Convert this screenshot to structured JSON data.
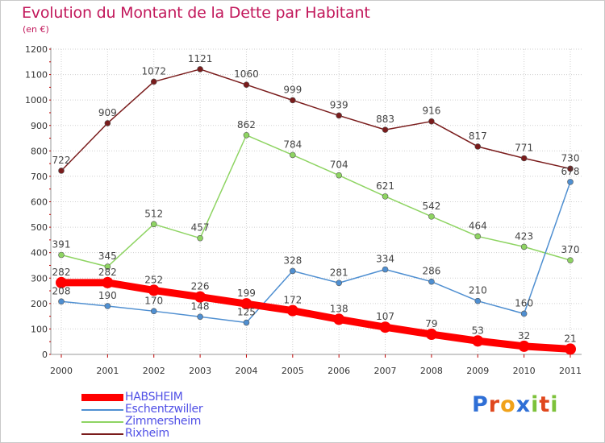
{
  "title": "Evolution du Montant de la Dette par Habitant",
  "subtitle": "(en €)",
  "chart_data": {
    "type": "line",
    "title": "Evolution du Montant de la Dette par Habitant",
    "subtitle": "(en €)",
    "x": [
      "2000",
      "2001",
      "2002",
      "2003",
      "2004",
      "2005",
      "2006",
      "2007",
      "2008",
      "2009",
      "2010",
      "2011"
    ],
    "yticks": [
      0,
      100,
      200,
      300,
      400,
      500,
      600,
      700,
      800,
      900,
      1000,
      1100,
      1200
    ],
    "ylim": [
      0,
      1200
    ],
    "grid": true,
    "legend_position": "bottom-left",
    "series": [
      {
        "name": "HABSHEIM",
        "color": "#ff0000",
        "values": [
          282,
          282,
          252,
          226,
          199,
          172,
          138,
          107,
          79,
          53,
          32,
          21
        ]
      },
      {
        "name": "Eschentzwiller",
        "color": "#4f8fd1",
        "values": [
          208,
          190,
          170,
          148,
          125,
          328,
          281,
          334,
          286,
          210,
          160,
          678
        ]
      },
      {
        "name": "Zimmersheim",
        "color": "#8ed462",
        "values": [
          391,
          345,
          512,
          457,
          862,
          784,
          704,
          621,
          542,
          464,
          423,
          370
        ]
      },
      {
        "name": "Rixheim",
        "color": "#7a1c1c",
        "values": [
          722,
          909,
          1072,
          1121,
          1060,
          999,
          939,
          883,
          916,
          817,
          771,
          730
        ]
      }
    ]
  },
  "logo": {
    "letters": [
      "P",
      "r",
      "o",
      "x",
      "i",
      "t",
      "i"
    ],
    "colors": [
      "#2f6fd6",
      "#e0471d",
      "#f0a21a",
      "#2f6fd6",
      "#7dc23a",
      "#e0471d",
      "#7dc23a"
    ]
  }
}
